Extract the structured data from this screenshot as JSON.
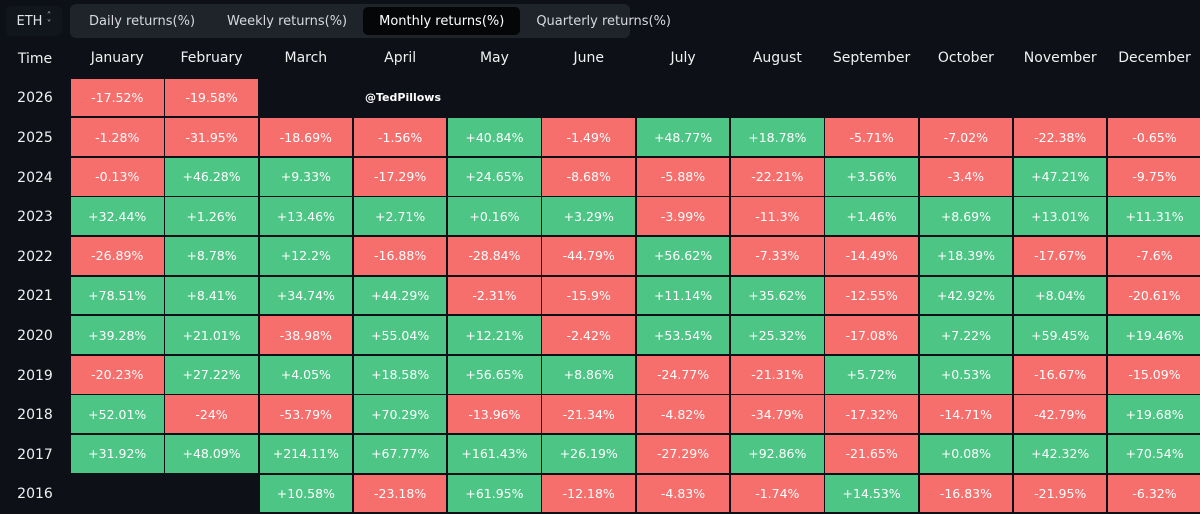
{
  "asset_selector": {
    "value": "ETH",
    "icon": "chevron-updown-icon"
  },
  "tabs": [
    {
      "label": "Daily returns(%)",
      "active": false
    },
    {
      "label": "Weekly returns(%)",
      "active": false
    },
    {
      "label": "Monthly returns(%)",
      "active": true
    },
    {
      "label": "Quarterly returns(%)",
      "active": false
    }
  ],
  "watermark": "@TedPillows",
  "colors": {
    "positive": "#4cc585",
    "negative": "#f66f6d",
    "background": "#0d1016"
  },
  "table": {
    "time_header": "Time",
    "months": [
      "January",
      "February",
      "March",
      "April",
      "May",
      "June",
      "July",
      "August",
      "September",
      "October",
      "November",
      "December"
    ],
    "rows": [
      {
        "year": "2026",
        "values": [
          "-17.52%",
          "-19.58%",
          null,
          null,
          null,
          null,
          null,
          null,
          null,
          null,
          null,
          null
        ]
      },
      {
        "year": "2025",
        "values": [
          "-1.28%",
          "-31.95%",
          "-18.69%",
          "-1.56%",
          "+40.84%",
          "-1.49%",
          "+48.77%",
          "+18.78%",
          "-5.71%",
          "-7.02%",
          "-22.38%",
          "-0.65%"
        ]
      },
      {
        "year": "2024",
        "values": [
          "-0.13%",
          "+46.28%",
          "+9.33%",
          "-17.29%",
          "+24.65%",
          "-8.68%",
          "-5.88%",
          "-22.21%",
          "+3.56%",
          "-3.4%",
          "+47.21%",
          "-9.75%"
        ]
      },
      {
        "year": "2023",
        "values": [
          "+32.44%",
          "+1.26%",
          "+13.46%",
          "+2.71%",
          "+0.16%",
          "+3.29%",
          "-3.99%",
          "-11.3%",
          "+1.46%",
          "+8.69%",
          "+13.01%",
          "+11.31%"
        ]
      },
      {
        "year": "2022",
        "values": [
          "-26.89%",
          "+8.78%",
          "+12.2%",
          "-16.88%",
          "-28.84%",
          "-44.79%",
          "+56.62%",
          "-7.33%",
          "-14.49%",
          "+18.39%",
          "-17.67%",
          "-7.6%"
        ]
      },
      {
        "year": "2021",
        "values": [
          "+78.51%",
          "+8.41%",
          "+34.74%",
          "+44.29%",
          "-2.31%",
          "-15.9%",
          "+11.14%",
          "+35.62%",
          "-12.55%",
          "+42.92%",
          "+8.04%",
          "-20.61%"
        ]
      },
      {
        "year": "2020",
        "values": [
          "+39.28%",
          "+21.01%",
          "-38.98%",
          "+55.04%",
          "+12.21%",
          "-2.42%",
          "+53.54%",
          "+25.32%",
          "-17.08%",
          "+7.22%",
          "+59.45%",
          "+19.46%"
        ]
      },
      {
        "year": "2019",
        "values": [
          "-20.23%",
          "+27.22%",
          "+4.05%",
          "+18.58%",
          "+56.65%",
          "+8.86%",
          "-24.77%",
          "-21.31%",
          "+5.72%",
          "+0.53%",
          "-16.67%",
          "-15.09%"
        ]
      },
      {
        "year": "2018",
        "values": [
          "+52.01%",
          "-24%",
          "-53.79%",
          "+70.29%",
          "-13.96%",
          "-21.34%",
          "-4.82%",
          "-34.79%",
          "-17.32%",
          "-14.71%",
          "-42.79%",
          "+19.68%"
        ]
      },
      {
        "year": "2017",
        "values": [
          "+31.92%",
          "+48.09%",
          "+214.11%",
          "+67.77%",
          "+161.43%",
          "+26.19%",
          "-27.29%",
          "+92.86%",
          "-21.65%",
          "+0.08%",
          "+42.32%",
          "+70.54%"
        ]
      },
      {
        "year": "2016",
        "values": [
          null,
          null,
          "+10.58%",
          "-23.18%",
          "+61.95%",
          "-12.18%",
          "-4.83%",
          "-1.74%",
          "+14.53%",
          "-16.83%",
          "-21.95%",
          "-6.32%"
        ]
      }
    ]
  }
}
